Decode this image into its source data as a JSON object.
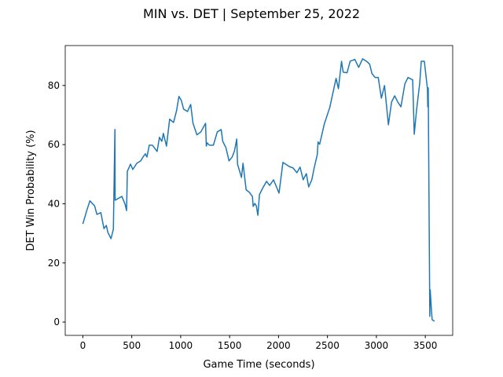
{
  "chart_data": {
    "type": "line",
    "title": "MIN vs. DET | September 25, 2022",
    "x_label": "Game Time (seconds)",
    "y_label": "DET Win Probability (%)",
    "xlim": [
      -180,
      3780
    ],
    "ylim": [
      -4.5,
      93.5
    ],
    "xticks": [
      0,
      500,
      1000,
      1500,
      2000,
      2500,
      3000,
      3500
    ],
    "yticks": [
      0,
      20,
      40,
      60,
      80
    ],
    "grid": false,
    "series": [
      {
        "name": "DET",
        "color": "#1f77b4",
        "x": [
          0,
          40,
          72,
          120,
          144,
          184,
          216,
          240,
          256,
          288,
          312,
          328,
          330,
          399,
          431,
          447,
          455,
          487,
          511,
          551,
          591,
          615,
          639,
          655,
          679,
          711,
          759,
          783,
          807,
          823,
          855,
          887,
          927,
          958,
          982,
          1006,
          1030,
          1070,
          1102,
          1126,
          1166,
          1206,
          1254,
          1262,
          1270,
          1294,
          1334,
          1374,
          1414,
          1430,
          1462,
          1494,
          1526,
          1550,
          1573,
          1581,
          1621,
          1637,
          1669,
          1701,
          1733,
          1741,
          1757,
          1773,
          1789,
          1805,
          1829,
          1845,
          1877,
          1909,
          1949,
          2005,
          2045,
          2109,
          2149,
          2188,
          2220,
          2252,
          2284,
          2308,
          2340,
          2364,
          2396,
          2404,
          2420,
          2468,
          2524,
          2588,
          2612,
          2644,
          2660,
          2700,
          2732,
          2780,
          2819,
          2859,
          2899,
          2931,
          2955,
          2987,
          3019,
          3051,
          3083,
          3123,
          3155,
          3187,
          3219,
          3251,
          3291,
          3323,
          3371,
          3387,
          3411,
          3443,
          3459,
          3490,
          3522,
          3525,
          3530,
          3546,
          3550,
          3562,
          3570,
          3594
        ],
        "values": [
          33.2,
          37.7,
          41,
          39.3,
          36.4,
          37,
          31.6,
          32.7,
          30.3,
          28.2,
          31.4,
          65.1,
          41.2,
          42.5,
          39.9,
          37.7,
          51,
          53.4,
          51.6,
          53.7,
          54.5,
          55.8,
          56.9,
          55.8,
          59.8,
          59.8,
          57.7,
          62.5,
          61.1,
          63.8,
          59.5,
          68.6,
          67.5,
          71.5,
          76.3,
          75,
          72,
          71.2,
          73.6,
          67.2,
          63.3,
          64.3,
          67.2,
          59.5,
          60.6,
          59.8,
          59.8,
          64.3,
          65.1,
          61.1,
          59,
          54.5,
          55.8,
          57.9,
          61.9,
          53.4,
          48.9,
          53.7,
          44.7,
          43.9,
          42.5,
          39.1,
          40.1,
          39.3,
          36.1,
          43.1,
          44.7,
          45.7,
          47.6,
          46.2,
          48.1,
          43.6,
          54,
          52.6,
          52.1,
          50.5,
          52.4,
          48.1,
          50.2,
          45.7,
          48.1,
          52.1,
          56.6,
          60.9,
          60.1,
          67,
          72.6,
          82.4,
          78.9,
          88.2,
          84.5,
          84.3,
          88.2,
          88.8,
          86.1,
          89,
          88.2,
          87.2,
          84,
          82.7,
          82.7,
          75.7,
          80,
          66.7,
          74.4,
          76.5,
          74.4,
          72.8,
          80.5,
          82.7,
          81.9,
          63.5,
          71.8,
          80.8,
          88.2,
          88.2,
          78.9,
          72.8,
          79.2,
          1.9,
          10.9,
          4.5,
          0.8,
          0.3
        ]
      }
    ]
  }
}
